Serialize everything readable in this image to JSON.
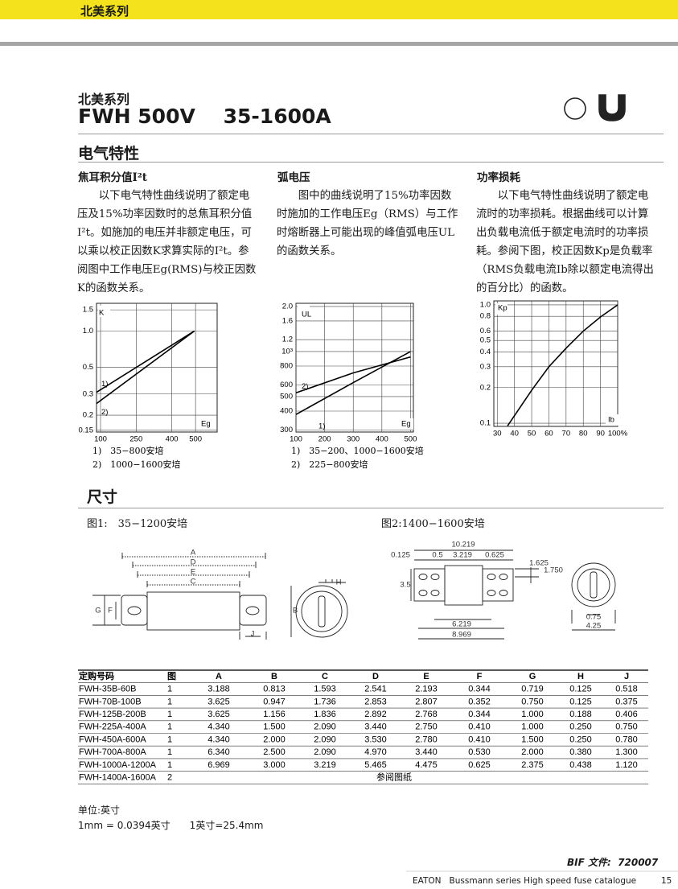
{
  "header_band": "北美系列",
  "product": {
    "family": "北美系列",
    "title": "FWH 500V    35-1600A"
  },
  "section_electrical": "电气特性",
  "columns": [
    {
      "heading": "焦耳积分值I²t",
      "text": "以下电气特性曲线说明了额定电压及15%功率因数时的总焦耳积分值I²t。如施加的电压并非额定电压，可以乘以校正因数K求算实际的I²t。参阅图中工作电压Eg(RMS)与校正因数K的函数关系。"
    },
    {
      "heading": "弧电压",
      "text": "图中的曲线说明了15%功率因数时施加的工作电压Eg（RMS）与工作时熔断器上可能出现的峰值弧电压UL的函数关系。"
    },
    {
      "heading": "功率损耗",
      "text": "以下电气特性曲线说明了额定电流时的功率损耗。根据曲线可以计算出负载电流低于额定电流时的功率损耗。参阅下图，校正因数Kp是负载率（RMS负载电流Ib除以额定电流得出的百分比）的函数。"
    }
  ],
  "charts": [
    {
      "type": "line",
      "x_scale": "linear",
      "y_scale": "log",
      "grid": true,
      "xlim": [
        83,
        591
      ],
      "ylim": [
        0.145,
        1.7
      ],
      "xticks": [
        100,
        250,
        400,
        500
      ],
      "yticks": [
        1.5,
        {
          "value": 1,
          "label": "1.0"
        },
        0.5,
        0.3,
        0.2,
        0.15
      ],
      "y_axis_label": "K",
      "x_axis_label": "Eg",
      "series": [
        {
          "name": "1)",
          "color": "#000000",
          "x": [
            83,
            495
          ],
          "values": [
            0.31,
            1
          ]
        },
        {
          "name": "2)",
          "color": "#000000",
          "x": [
            83,
            495
          ],
          "values": [
            0.25,
            1
          ]
        }
      ],
      "notes": [
        "1)　35−800安培",
        "2)　1000−1600安培"
      ]
    },
    {
      "type": "line",
      "x_scale": "linear",
      "y_scale": "log",
      "grid": true,
      "xlim": [
        100,
        510
      ],
      "ylim": [
        290,
        2100
      ],
      "xticks": [
        100,
        200,
        300,
        400,
        500
      ],
      "yticks": [
        {
          "value": 2000,
          "label": "2.0"
        },
        {
          "value": 1600,
          "label": "1.6"
        },
        {
          "value": 1200,
          "label": "1.2"
        },
        {
          "value": 1000,
          "label": "10³"
        },
        800,
        600,
        500,
        400,
        300
      ],
      "y_axis_label": "UL",
      "x_axis_label": "Eg",
      "series": [
        {
          "name": "1)",
          "color": "#000000",
          "x": [
            100,
            300,
            500
          ],
          "values": [
            380,
            620,
            1000
          ]
        },
        {
          "name": "2)",
          "color": "#000000",
          "x": [
            100,
            300,
            500
          ],
          "values": [
            530,
            720,
            920
          ]
        }
      ],
      "notes": [
        "1)　35−200、1000−1600安培",
        "2)　225−800安培"
      ]
    },
    {
      "type": "line",
      "x_scale": "linear",
      "y_scale": "log",
      "grid": true,
      "xlim": [
        28,
        100
      ],
      "ylim": [
        0.094,
        1.08
      ],
      "xticks": [
        30,
        40,
        50,
        60,
        70,
        80,
        90,
        {
          "value": 100,
          "label": "100%"
        }
      ],
      "yticks": [
        {
          "value": 1,
          "label": "1.0"
        },
        0.8,
        0.6,
        0.5,
        0.4,
        0.3,
        0.2,
        0.1
      ],
      "y_axis_label": "Kp",
      "x_axis_label": "Ib",
      "series": [
        {
          "name": "Kp",
          "color": "#000000",
          "x": [
            36,
            50,
            60,
            70,
            80,
            90,
            100
          ],
          "values": [
            0.095,
            0.19,
            0.3,
            0.43,
            0.6,
            0.79,
            1
          ]
        }
      ],
      "notes": []
    }
  ],
  "section_dimensions": "尺寸",
  "figures": [
    {
      "label": "图1:　35−1200安培",
      "letters": [
        "A",
        "D",
        "E",
        "C",
        "G",
        "F",
        "B",
        "H",
        "J"
      ]
    },
    {
      "label": "图2:1400−1600安培",
      "dims": [
        "10.219",
        "0.125",
        "0.5",
        "3.219",
        "0.625",
        "1.625",
        "1.750",
        "3.5",
        "6.219",
        "8.969",
        "0.75",
        "4.25"
      ]
    }
  ],
  "table": {
    "header": [
      "定购号码",
      "图",
      "A",
      "B",
      "C",
      "D",
      "E",
      "F",
      "G",
      "H",
      "J"
    ],
    "rows": [
      [
        "FWH-35B-60B",
        "1",
        "3.188",
        "0.813",
        "1.593",
        "2.541",
        "2.193",
        "0.344",
        "0.719",
        "0.125",
        "0.518"
      ],
      [
        "FWH-70B-100B",
        "1",
        "3.625",
        "0.947",
        "1.736",
        "2.853",
        "2.807",
        "0.352",
        "0.750",
        "0.125",
        "0.375"
      ],
      [
        "FWH-125B-200B",
        "1",
        "3.625",
        "1.156",
        "1.836",
        "2.892",
        "2.768",
        "0.344",
        "1.000",
        "0.188",
        "0.406"
      ],
      [
        "FWH-225A-400A",
        "1",
        "4.340",
        "1.500",
        "2.090",
        "3.440",
        "2.750",
        "0.410",
        "1.000",
        "0.250",
        "0.750"
      ],
      [
        "FWH-450A-600A",
        "1",
        "4.340",
        "2.000",
        "2.090",
        "3.530",
        "2.780",
        "0.410",
        "1.500",
        "0.250",
        "0.780"
      ],
      [
        "FWH-700A-800A",
        "1",
        "6.340",
        "2.500",
        "2.090",
        "4.970",
        "3.440",
        "0.530",
        "2.000",
        "0.380",
        "1.300"
      ],
      [
        "FWH-1000A-1200A",
        "1",
        "6.969",
        "3.000",
        "3.219",
        "5.465",
        "4.475",
        "0.625",
        "2.375",
        "0.438",
        "1.120"
      ],
      [
        "FWH-1400A-1600A",
        "2",
        "参阅图纸"
      ]
    ]
  },
  "units": [
    "单位:英寸",
    "1mm = 0.0394英寸　　1英寸=25.4mm"
  ],
  "footer": {
    "doc": "BIF 文件:  720007",
    "catalogue": "EATON   Bussmann series High speed fuse catalogue",
    "page": "15"
  }
}
